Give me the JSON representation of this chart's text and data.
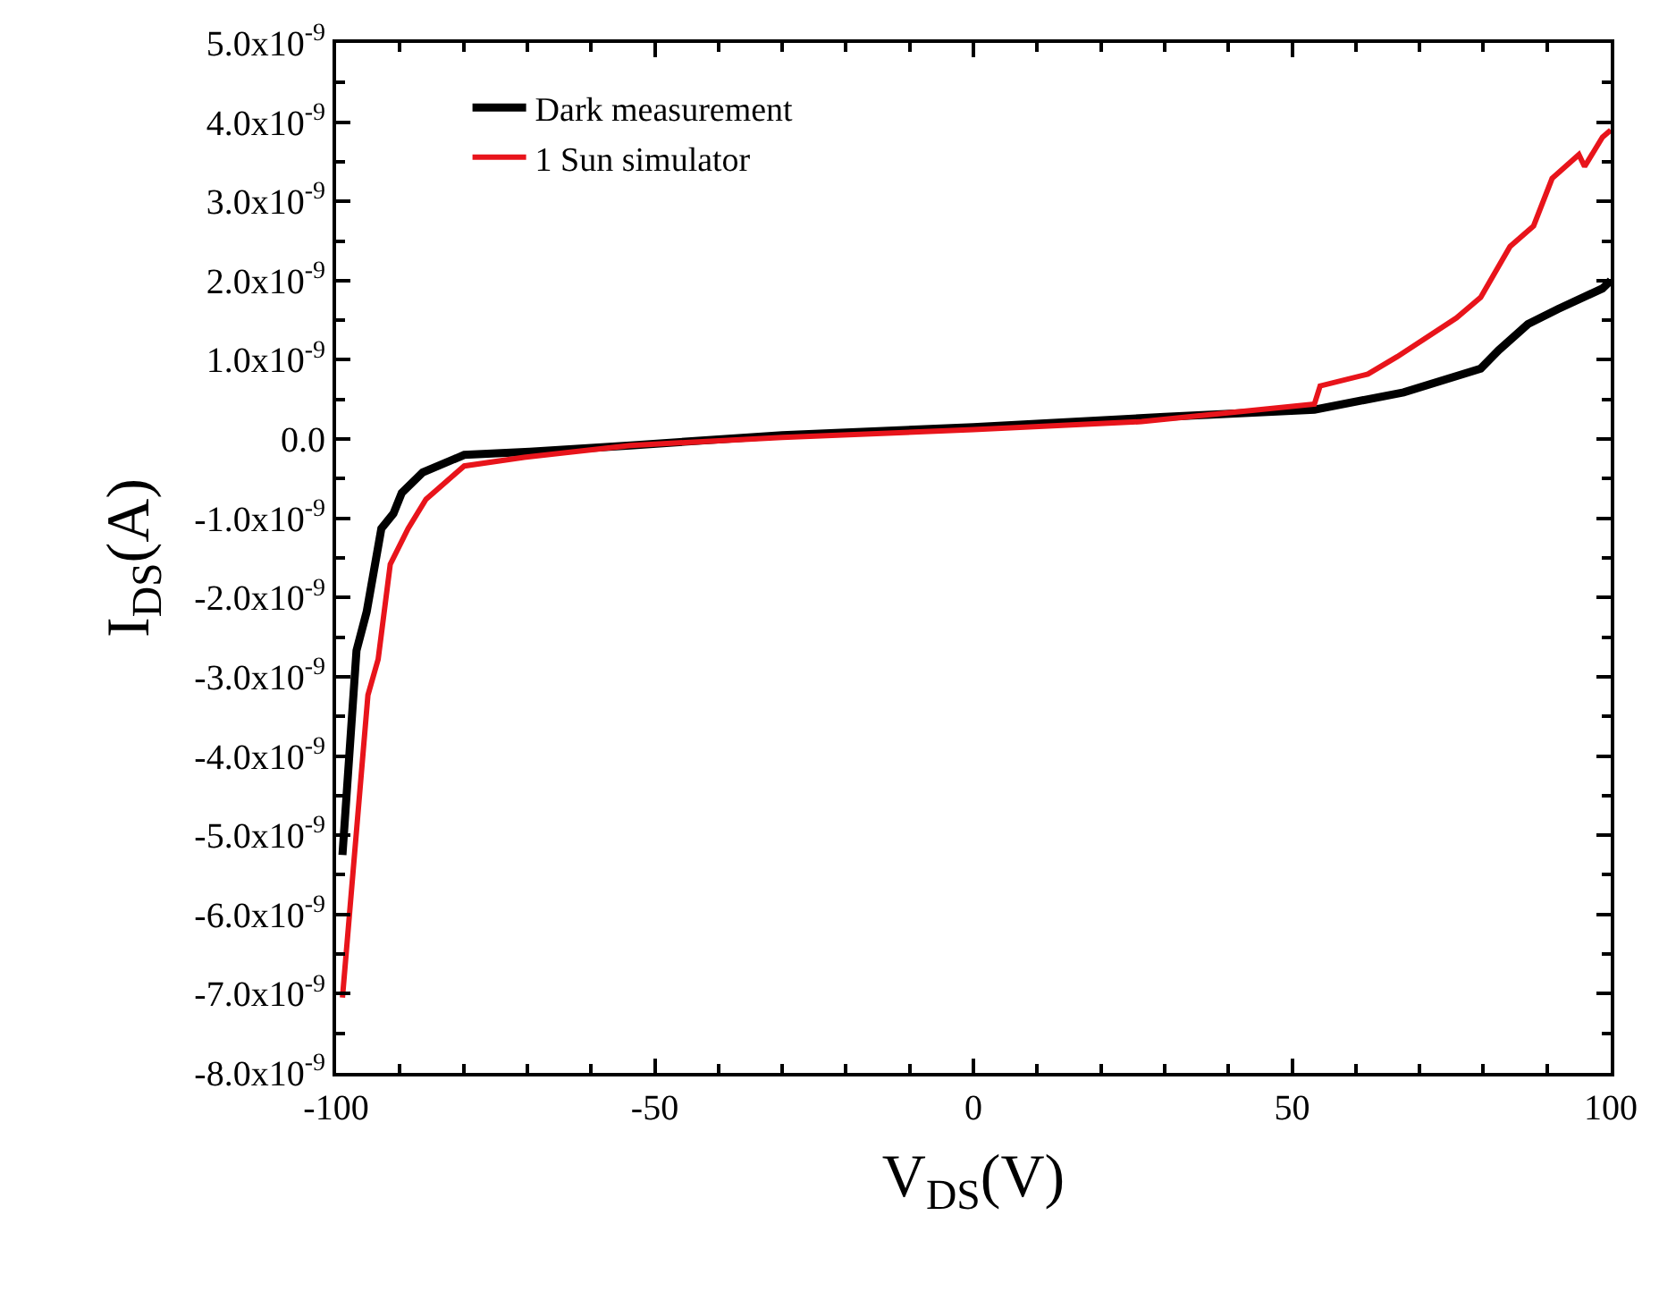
{
  "chart_data": {
    "type": "line",
    "xlabel": "V$_{DS}$(V)",
    "ylabel": "I$_{DS}$(A)",
    "xlim": [
      -100,
      100
    ],
    "xticks": [
      -100,
      -50,
      0,
      50,
      100
    ],
    "ylim": [
      -8e-09,
      5e-09
    ],
    "yticks": [
      {
        "value": 5e-09,
        "label": "5.0x10$^{-9}$"
      },
      {
        "value": 4e-09,
        "label": "4.0x10$^{-9}$"
      },
      {
        "value": 3e-09,
        "label": "3.0x10$^{-9}$"
      },
      {
        "value": 2e-09,
        "label": "2.0x10$^{-9}$"
      },
      {
        "value": 1e-09,
        "label": "1.0x10$^{-9}$"
      },
      {
        "value": 0,
        "label": "0.0"
      },
      {
        "value": -1e-09,
        "label": "-1.0x10$^{-9}$"
      },
      {
        "value": -2e-09,
        "label": "-2.0x10$^{-9}$"
      },
      {
        "value": -3e-09,
        "label": "-3.0x10$^{-9}$"
      },
      {
        "value": -4e-09,
        "label": "-4.0x10$^{-9}$"
      },
      {
        "value": -5e-09,
        "label": "-5.0x10$^{-9}$"
      },
      {
        "value": -6e-09,
        "label": "-6.0x10$^{-9}$"
      },
      {
        "value": -7e-09,
        "label": "-7.0x10$^{-9}$"
      },
      {
        "value": -8e-09,
        "label": "-8.0x10$^{-9}$"
      }
    ],
    "legend": "top left",
    "marker": "none",
    "line_style": "solid",
    "series": [
      {
        "name": "Dark measurement",
        "color": "#000000",
        "x": [
          -99.0,
          -96.8,
          -95.2,
          -92.9,
          -91.0,
          -89.7,
          -86.4,
          -79.9,
          -69.6,
          -53.8,
          -30,
          0,
          30,
          53.5,
          67.5,
          79.6,
          82.4,
          87.0,
          91.7,
          98.7,
          100
        ],
        "values": [
          -5.25e-09,
          -2.67e-09,
          -2.18e-09,
          -1.13e-09,
          -9.4e-10,
          -6.8e-10,
          -4.2e-10,
          -2e-10,
          -1.6e-10,
          -8e-11,
          5e-11,
          1.5e-10,
          2.8e-10,
          3.7e-10,
          5.9e-10,
          8.9e-10,
          1.12e-09,
          1.45e-09,
          1.64e-09,
          1.9e-09,
          2e-09
        ]
      },
      {
        "name": "1 Sun simulator",
        "color": "#e8141b",
        "x": [
          -99.0,
          -95.0,
          -93.4,
          -91.5,
          -88.7,
          -85.9,
          -79.9,
          -70.5,
          -53.8,
          -30,
          0,
          26.4,
          53.5,
          54.4,
          61.9,
          66.5,
          75.8,
          79.6,
          84.2,
          87.9,
          90.8,
          95.0,
          95.9,
          98.7,
          100
        ],
        "values": [
          -7.05e-09,
          -3.23e-09,
          -2.78e-09,
          -1.58e-09,
          -1.13e-09,
          -7.6e-10,
          -3.4e-10,
          -2.3e-10,
          -8e-11,
          2e-11,
          1.2e-10,
          2.2e-10,
          4.4e-10,
          6.7e-10,
          8.2e-10,
          1.04e-09,
          1.53e-09,
          1.79e-09,
          2.43e-09,
          2.69e-09,
          3.29e-09,
          3.59e-09,
          3.44e-09,
          3.81e-09,
          3.9e-09
        ]
      }
    ]
  }
}
